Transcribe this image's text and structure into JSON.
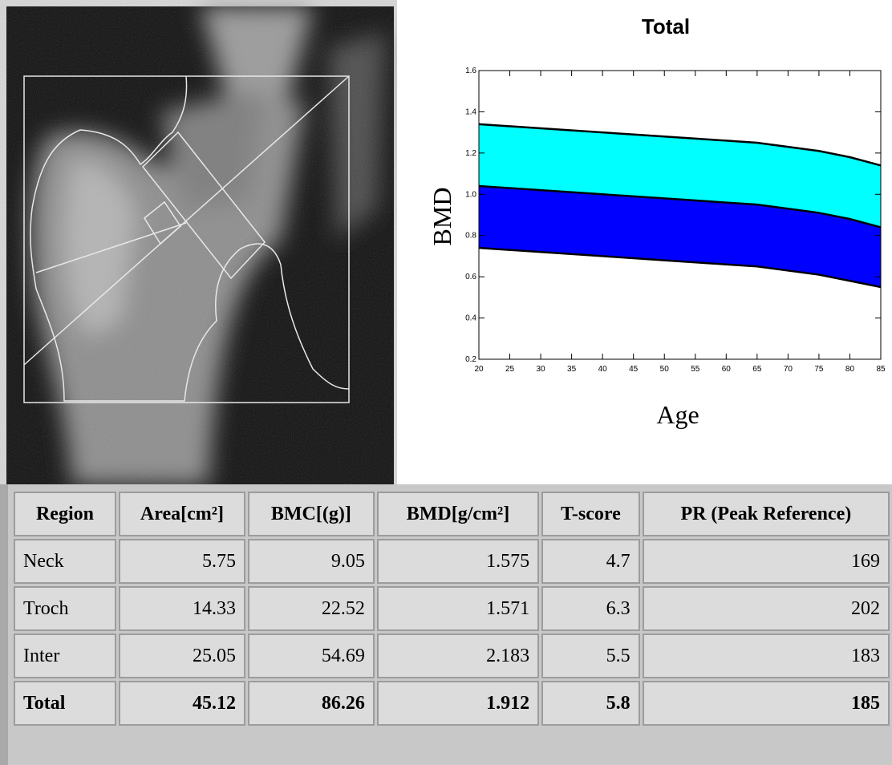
{
  "chart_data": {
    "type": "band",
    "title": "Total",
    "x_label": "Age",
    "y_label": "BMD",
    "x": [
      20,
      30,
      40,
      50,
      60,
      65,
      70,
      75,
      80,
      85
    ],
    "series": [
      {
        "values": [
          1.34,
          1.32,
          1.3,
          1.28,
          1.26,
          1.25,
          1.23,
          1.21,
          1.18,
          1.14
        ]
      },
      {
        "values": [
          1.04,
          1.02,
          1.0,
          0.98,
          0.96,
          0.95,
          0.93,
          0.91,
          0.88,
          0.84
        ]
      },
      {
        "values": [
          0.74,
          0.72,
          0.7,
          0.68,
          0.66,
          0.65,
          0.63,
          0.61,
          0.58,
          0.55
        ]
      }
    ],
    "band_colors": [
      "#00ffff",
      "#0000ff"
    ],
    "line_color": "#000000",
    "xlim": [
      20,
      85
    ],
    "xticks": [
      20,
      25,
      30,
      35,
      40,
      45,
      50,
      55,
      60,
      65,
      70,
      75,
      80,
      85
    ],
    "ylim": [
      0.2,
      1.6
    ],
    "yticks": [
      0.2,
      0.4,
      0.6,
      0.8,
      {
        "value": 1,
        "label": "1.0"
      },
      1.2,
      1.4,
      1.6
    ]
  },
  "table": {
    "header": [
      "Region",
      "Area[cm²]",
      "BMC[(g)]",
      "BMD[g/cm²]",
      "T-score",
      "PR (Peak Reference)"
    ],
    "rows": [
      [
        "Neck",
        "5.75",
        "9.05",
        "1.575",
        "4.7",
        "169"
      ],
      [
        "Troch",
        "14.33",
        "22.52",
        "1.571",
        "6.3",
        "202"
      ],
      [
        "Inter",
        "25.05",
        "54.69",
        "2.183",
        "5.5",
        "183"
      ],
      [
        "Total",
        "45.12",
        "86.26",
        "1.912",
        "5.8",
        "185"
      ]
    ]
  }
}
